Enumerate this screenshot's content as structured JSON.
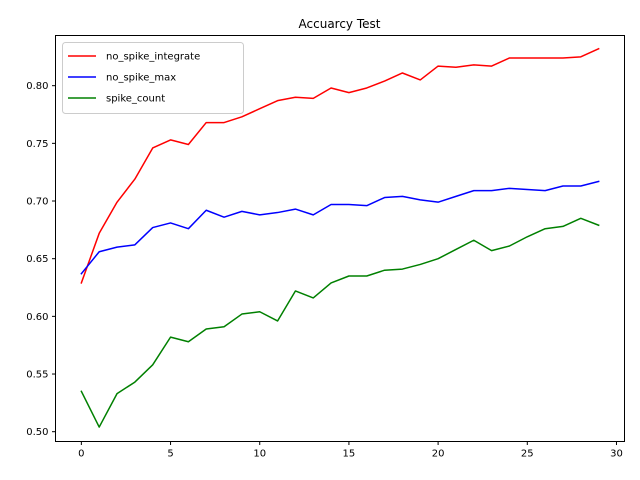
{
  "chart_data": {
    "type": "line",
    "title": "Accuarcy Test",
    "xlabel": "",
    "ylabel": "",
    "xlim": [
      -1.45,
      30.45
    ],
    "ylim": [
      0.4915,
      0.8435
    ],
    "xticks": [
      0,
      5,
      10,
      15,
      20,
      25,
      30
    ],
    "xtick_labels": [
      "0",
      "5",
      "10",
      "15",
      "20",
      "25",
      "30"
    ],
    "yticks": [
      0.5,
      0.55,
      0.6,
      0.65,
      0.7,
      0.75,
      0.8
    ],
    "ytick_labels": [
      "0.50",
      "0.55",
      "0.60",
      "0.65",
      "0.70",
      "0.75",
      "0.80"
    ],
    "grid": false,
    "legend_position": "top-left",
    "x": [
      0,
      1,
      2,
      3,
      4,
      5,
      6,
      7,
      8,
      9,
      10,
      11,
      12,
      13,
      14,
      15,
      16,
      17,
      18,
      19,
      20,
      21,
      22,
      23,
      24,
      25,
      26,
      27,
      28,
      29
    ],
    "series": [
      {
        "name": "no_spike_integrate",
        "color": "#ff0000",
        "values": [
          0.629,
          0.672,
          0.699,
          0.719,
          0.746,
          0.753,
          0.749,
          0.768,
          0.768,
          0.773,
          0.78,
          0.787,
          0.79,
          0.789,
          0.798,
          0.794,
          0.798,
          0.804,
          0.811,
          0.805,
          0.817,
          0.816,
          0.818,
          0.817,
          0.824,
          0.824,
          0.824,
          0.824,
          0.825,
          0.832
        ]
      },
      {
        "name": "no_spike_max",
        "color": "#0000ff",
        "values": [
          0.637,
          0.656,
          0.66,
          0.662,
          0.677,
          0.681,
          0.676,
          0.692,
          0.686,
          0.691,
          0.688,
          0.69,
          0.693,
          0.688,
          0.697,
          0.697,
          0.696,
          0.703,
          0.704,
          0.701,
          0.699,
          0.704,
          0.709,
          0.709,
          0.711,
          0.71,
          0.709,
          0.713,
          0.713,
          0.717
        ]
      },
      {
        "name": "spike_count",
        "color": "#008000",
        "values": [
          0.535,
          0.504,
          0.533,
          0.543,
          0.558,
          0.582,
          0.578,
          0.589,
          0.591,
          0.602,
          0.604,
          0.596,
          0.622,
          0.616,
          0.629,
          0.635,
          0.635,
          0.64,
          0.641,
          0.645,
          0.65,
          0.658,
          0.666,
          0.657,
          0.661,
          0.669,
          0.676,
          0.678,
          0.685,
          0.679
        ]
      }
    ]
  }
}
